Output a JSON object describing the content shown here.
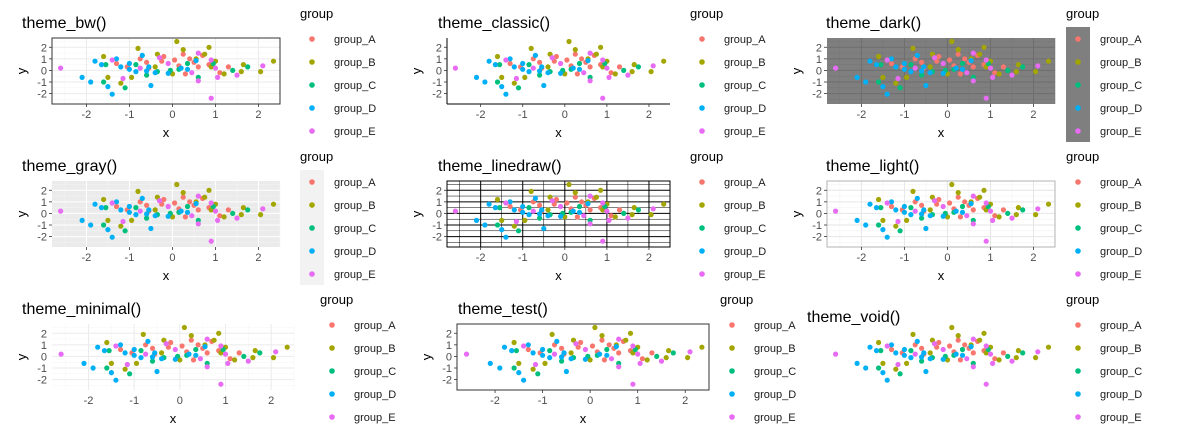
{
  "colors": {
    "group_A": "#F8766D",
    "group_B": "#A3A500",
    "group_C": "#00BF7D",
    "group_D": "#00B0F6",
    "group_E": "#E76BF3"
  },
  "chart_data": [
    {
      "type": "scatter",
      "title": "theme_bw()",
      "theme": "bw",
      "xlabel": "x",
      "ylabel": "y",
      "legend_title": "group",
      "legend_placement": "right",
      "xlim": [
        -2.8,
        2.5
      ],
      "ylim": [
        -2.9,
        2.8
      ],
      "xticks": [
        -2,
        -1,
        0,
        1,
        2
      ],
      "yticks": [
        -2,
        -1,
        0,
        1,
        2
      ]
    },
    {
      "type": "scatter",
      "title": "theme_classic()",
      "theme": "classic",
      "xlabel": "x",
      "ylabel": "y",
      "legend_title": "group",
      "legend_placement": "right",
      "xlim": [
        -2.8,
        2.5
      ],
      "ylim": [
        -2.9,
        2.8
      ],
      "xticks": [
        -2,
        -1,
        0,
        1,
        2
      ],
      "yticks": [
        -2,
        -1,
        0,
        1,
        2
      ]
    },
    {
      "type": "scatter",
      "title": "theme_dark()",
      "theme": "dark",
      "xlabel": "x",
      "ylabel": "y",
      "legend_title": "group",
      "legend_placement": "right",
      "xlim": [
        -2.8,
        2.5
      ],
      "ylim": [
        -2.9,
        2.8
      ],
      "xticks": [
        -2,
        -1,
        0,
        1,
        2
      ],
      "yticks": [
        -2,
        -1,
        0,
        1,
        2
      ]
    },
    {
      "type": "scatter",
      "title": "theme_gray()",
      "theme": "gray",
      "xlabel": "x",
      "ylabel": "y",
      "legend_title": "group",
      "legend_placement": "right",
      "xlim": [
        -2.8,
        2.5
      ],
      "ylim": [
        -2.9,
        2.8
      ],
      "xticks": [
        -2,
        -1,
        0,
        1,
        2
      ],
      "yticks": [
        -2,
        -1,
        0,
        1,
        2
      ]
    },
    {
      "type": "scatter",
      "title": "theme_linedraw()",
      "theme": "linedraw",
      "xlabel": "x",
      "ylabel": "y",
      "legend_title": "group",
      "legend_placement": "right",
      "xlim": [
        -2.8,
        2.5
      ],
      "ylim": [
        -2.9,
        2.8
      ],
      "xticks": [
        -2,
        -1,
        0,
        1,
        2
      ],
      "yticks": [
        -2,
        -1,
        0,
        1,
        2
      ]
    },
    {
      "type": "scatter",
      "title": "theme_light()",
      "theme": "light",
      "xlabel": "x",
      "ylabel": "y",
      "legend_title": "group",
      "legend_placement": "right",
      "xlim": [
        -2.8,
        2.5
      ],
      "ylim": [
        -2.9,
        2.8
      ],
      "xticks": [
        -2,
        -1,
        0,
        1,
        2
      ],
      "yticks": [
        -2,
        -1,
        0,
        1,
        2
      ]
    },
    {
      "type": "scatter",
      "title": "theme_minimal()",
      "theme": "minimal",
      "xlabel": "x",
      "ylabel": "y",
      "legend_title": "group",
      "legend_placement": "right",
      "xlim": [
        -2.8,
        2.5
      ],
      "ylim": [
        -2.9,
        2.8
      ],
      "xticks": [
        -2,
        -1,
        0,
        1,
        2
      ],
      "yticks": [
        -2,
        -1,
        0,
        1,
        2
      ]
    },
    {
      "type": "scatter",
      "title": "theme_test()",
      "theme": "test",
      "xlabel": "x",
      "ylabel": "y",
      "legend_title": "group",
      "legend_placement": "right",
      "xlim": [
        -2.8,
        2.5
      ],
      "ylim": [
        -2.9,
        2.8
      ],
      "xticks": [
        -2,
        -1,
        0,
        1,
        2
      ],
      "yticks": [
        -2,
        -1,
        0,
        1,
        2
      ]
    },
    {
      "type": "scatter",
      "title": "theme_void()",
      "theme": "void",
      "xlabel": "",
      "ylabel": "",
      "legend_title": "group",
      "legend_placement": "right",
      "xlim": [
        -2.8,
        2.5
      ],
      "ylim": [
        -2.9,
        2.8
      ],
      "xticks": [],
      "yticks": []
    }
  ],
  "series": [
    {
      "name": "group_A",
      "points": [
        [
          -1.3,
          0.6
        ],
        [
          -1.05,
          0.3
        ],
        [
          -0.75,
          1.0
        ],
        [
          -0.55,
          0.2
        ],
        [
          -0.25,
          0.8
        ],
        [
          0.05,
          0.9
        ],
        [
          0.15,
          0.4
        ],
        [
          0.25,
          1.4
        ],
        [
          0.4,
          1.0
        ],
        [
          0.5,
          0.7
        ],
        [
          0.6,
          0.3
        ],
        [
          0.7,
          1.3
        ],
        [
          0.85,
          0.5
        ],
        [
          1.1,
          -0.2
        ],
        [
          1.3,
          0.3
        ],
        [
          -0.2,
          1.2
        ],
        [
          0.3,
          -0.3
        ],
        [
          -0.6,
          0.7
        ]
      ]
    },
    {
      "name": "group_B",
      "points": [
        [
          0.1,
          2.5
        ],
        [
          0.85,
          2.0
        ],
        [
          -0.8,
          1.9
        ],
        [
          0.25,
          1.8
        ],
        [
          0.75,
          1.4
        ],
        [
          -0.35,
          1.4
        ],
        [
          -1.6,
          1.2
        ],
        [
          0.55,
          1.0
        ],
        [
          1.0,
          0.8
        ],
        [
          -0.4,
          0.3
        ],
        [
          2.35,
          0.8
        ],
        [
          1.65,
          0.5
        ],
        [
          -1.5,
          -0.6
        ],
        [
          1.2,
          -0.3
        ],
        [
          0.0,
          -0.3
        ],
        [
          2.05,
          -0.1
        ],
        [
          -0.95,
          -0.6
        ],
        [
          1.6,
          -0.1
        ],
        [
          0.9,
          0.3
        ],
        [
          -1.2,
          -1.1
        ]
      ]
    },
    {
      "name": "group_C",
      "points": [
        [
          -1.55,
          0.5
        ],
        [
          -0.85,
          0.5
        ],
        [
          -0.35,
          -0.1
        ],
        [
          0.15,
          0.1
        ],
        [
          0.35,
          0.6
        ],
        [
          0.95,
          0.6
        ],
        [
          1.4,
          0.0
        ],
        [
          -0.6,
          -0.4
        ],
        [
          0.6,
          -0.6
        ],
        [
          -1.6,
          -1.0
        ],
        [
          1.75,
          0.3
        ],
        [
          -0.05,
          0.0
        ],
        [
          -1.1,
          -1.5
        ]
      ]
    },
    {
      "name": "group_D",
      "points": [
        [
          -1.3,
          1.0
        ],
        [
          -1.8,
          0.8
        ],
        [
          -1.65,
          0.5
        ],
        [
          -2.1,
          -0.6
        ],
        [
          -1.2,
          0.3
        ],
        [
          -1.0,
          0.6
        ],
        [
          -0.85,
          -0.1
        ],
        [
          -0.6,
          -0.05
        ],
        [
          -0.55,
          0.3
        ],
        [
          -0.4,
          -0.2
        ],
        [
          -0.1,
          -0.25
        ],
        [
          0.35,
          0.1
        ],
        [
          0.2,
          0.2
        ],
        [
          -1.5,
          -1.4
        ],
        [
          -1.4,
          -2.05
        ],
        [
          -0.5,
          -1.3
        ],
        [
          -1.9,
          -1.0
        ],
        [
          -1.0,
          0.1
        ],
        [
          -0.7,
          1.3
        ],
        [
          0.55,
          0.85
        ]
      ]
    },
    {
      "name": "group_E",
      "points": [
        [
          -2.6,
          0.2
        ],
        [
          -1.4,
          0.9
        ],
        [
          -0.75,
          0.2
        ],
        [
          0.6,
          1.5
        ],
        [
          0.9,
          0.9
        ],
        [
          1.05,
          -0.6
        ],
        [
          0.6,
          -0.9
        ],
        [
          0.9,
          -2.4
        ],
        [
          2.1,
          0.4
        ],
        [
          -0.1,
          0.6
        ],
        [
          -1.15,
          -0.7
        ],
        [
          1.0,
          0.2
        ],
        [
          0.45,
          -0.2
        ],
        [
          1.5,
          -0.4
        ],
        [
          -0.3,
          1.1
        ]
      ]
    }
  ]
}
